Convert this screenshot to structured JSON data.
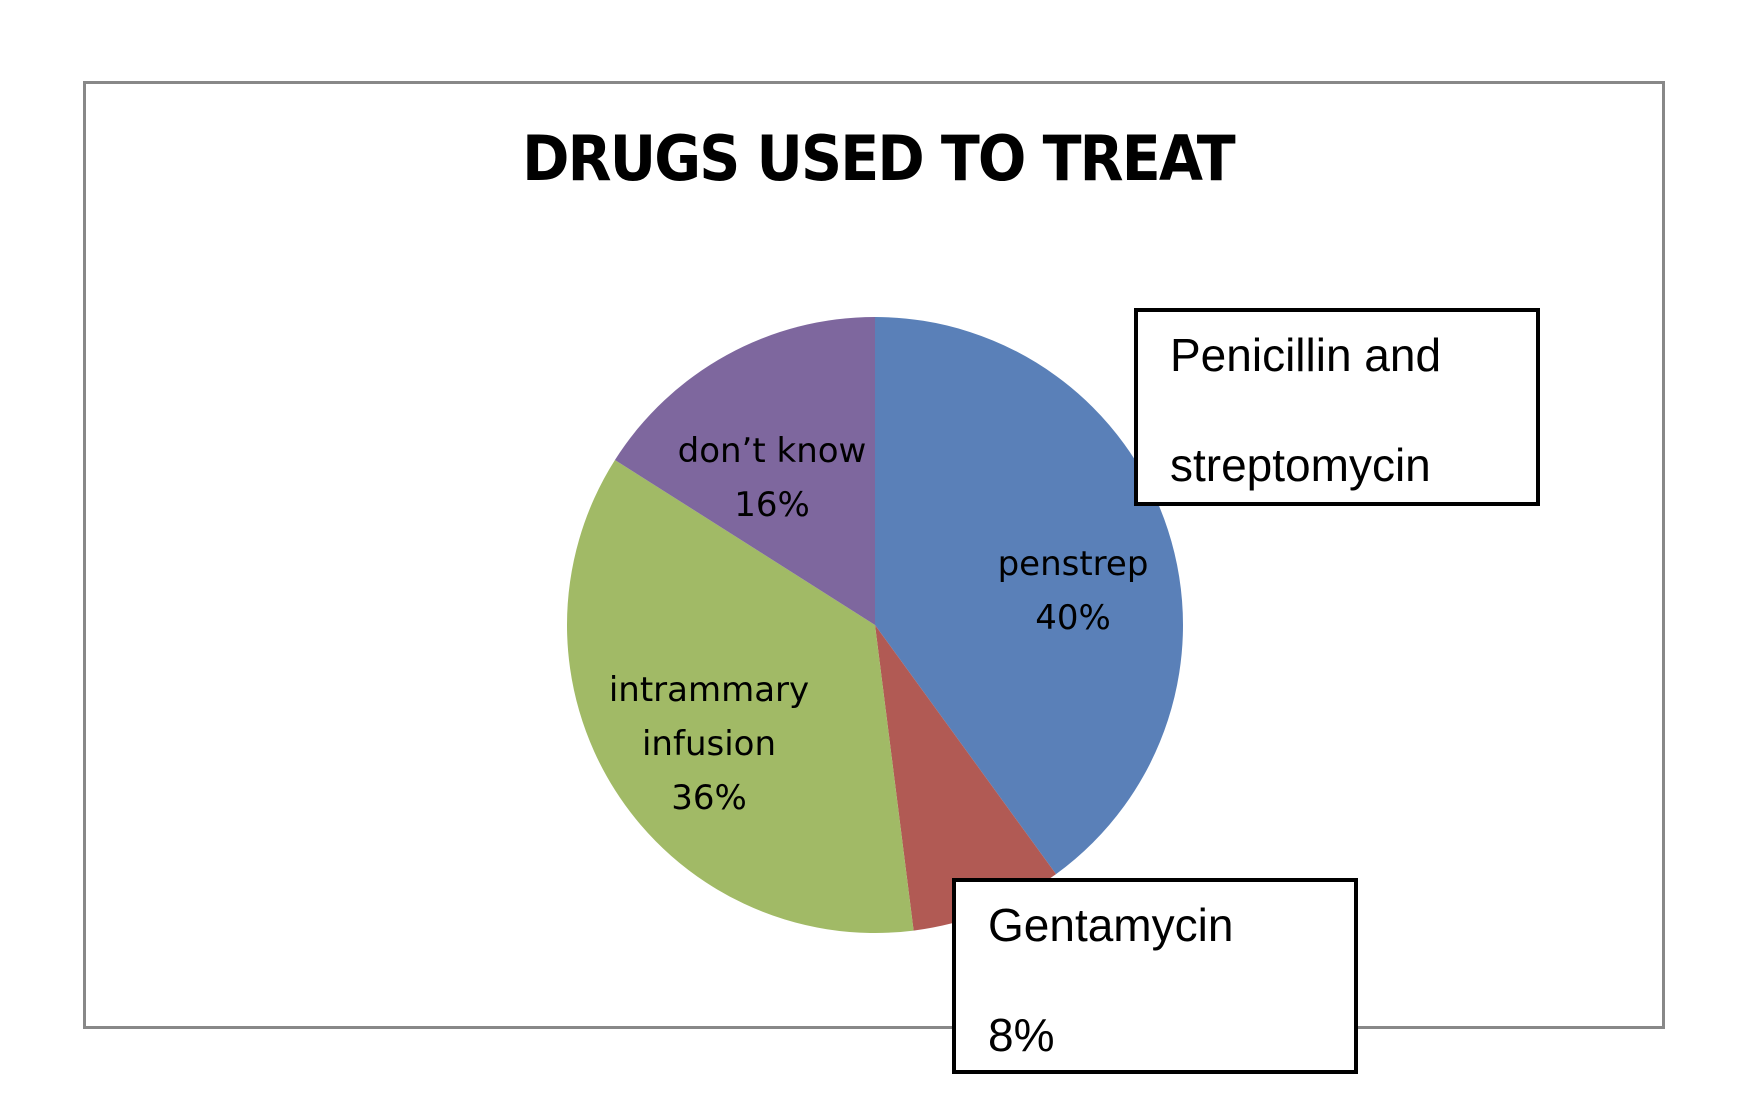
{
  "chart_data": {
    "type": "pie",
    "title": "DRUGS USED TO TREAT",
    "categories": [
      "penstrep",
      "Gentamycin",
      "intrammary infusion",
      "don’t know"
    ],
    "values": [
      40,
      8,
      36,
      16
    ],
    "unit": "%",
    "colors": [
      "#5A80B8",
      "#B15A54",
      "#A1BA66",
      "#7E679E"
    ],
    "slice_labels": [
      {
        "lines": [
          "penstrep",
          "40%"
        ]
      },
      {
        "lines": []
      },
      {
        "lines": [
          "intrammary",
          "infusion",
          "36%"
        ]
      },
      {
        "lines": [
          "don’t know",
          "16%"
        ]
      }
    ],
    "annotations": [
      {
        "lines": [
          "Penicillin and",
          "streptomycin"
        ],
        "refers_to": "penstrep"
      },
      {
        "lines": [
          "Gentamycin",
          "8%"
        ],
        "refers_to": "Gentamycin"
      }
    ],
    "legend": "none",
    "start_angle": "12 o'clock, clockwise"
  },
  "title": "DRUGS USED TO TREAT",
  "labels": {
    "penstrep": {
      "name": "penstrep",
      "pct": "40%"
    },
    "intrammary": {
      "line1": "intrammary",
      "line2": "infusion",
      "pct": "36%"
    },
    "dontknow": {
      "name": "don’t know",
      "pct": "16%"
    }
  },
  "callouts": {
    "penicillin": {
      "line1": "Penicillin and",
      "line2": "streptomycin"
    },
    "gentamycin": {
      "line1": "Gentamycin",
      "line2": "8%"
    }
  }
}
